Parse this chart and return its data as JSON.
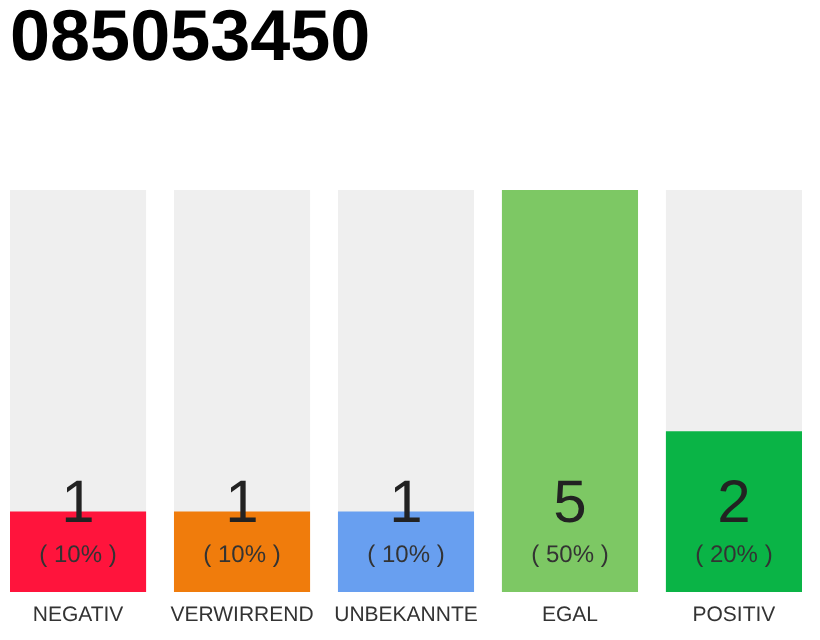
{
  "chart_data": {
    "type": "bar",
    "title": "085053450",
    "categories": [
      "NEGATIV",
      "VERWIRREND",
      "UNBEKANNTE",
      "EGAL",
      "POSITIV"
    ],
    "values": [
      10,
      10,
      10,
      50,
      20
    ],
    "colors": [
      "#ff143c",
      "#f07c0c",
      "#689ff0",
      "#7dc864",
      "#0ab446"
    ],
    "value_labels": [
      "( 10% )",
      "( 10% )",
      "( 10% )",
      "( 50% )",
      "( 20% )"
    ],
    "annotations": [
      "1",
      "1",
      "1",
      "5",
      "2"
    ],
    "ylim": [
      0,
      50
    ],
    "tick_labels": "x"
  }
}
